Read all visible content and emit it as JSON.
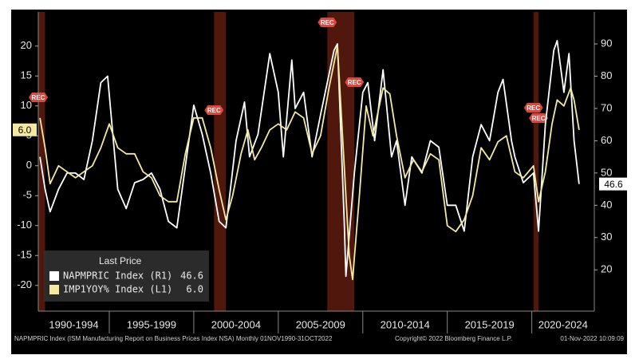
{
  "chart_data": {
    "type": "line",
    "legend_title": "Last Price",
    "recession_label": "REC",
    "footer": [
      "NAPMPRIC Index (ISM Manufacturing Report on Business Prices Index NSA) Monthly 01NOV1990-31OCT2022",
      "Copyright© 2022 Bloomberg Finance L.P.",
      "01-Nov-2022 10:09:09"
    ],
    "xlim": [
      1990.8,
      2023.7
    ],
    "xticks": [
      {
        "value": 1990,
        "label": "1990-1994"
      },
      {
        "value": 1995,
        "label": "1995-1999"
      },
      {
        "value": 2000,
        "label": "2000-2004"
      },
      {
        "value": 2005,
        "label": "2005-2009"
      },
      {
        "value": 2010,
        "label": "2010-2014"
      },
      {
        "value": 2015,
        "label": "2015-2019"
      },
      {
        "value": 2020,
        "label": "2020-2024"
      }
    ],
    "ylim": [
      -24.3,
      25.7
    ],
    "yticks": [
      -20,
      -15,
      -10,
      -5,
      0,
      5,
      10,
      15,
      20
    ],
    "y2lim": [
      7.2,
      99.9
    ],
    "y2ticks": [
      20,
      30,
      40,
      50,
      60,
      70,
      80,
      90
    ],
    "recessions": [
      {
        "start": 1990.6,
        "end": 1991.2
      },
      {
        "start": 2001.2,
        "end": 2001.9
      },
      {
        "start": 2007.9,
        "end": 2009.5
      },
      {
        "start": 2020.1,
        "end": 2020.4
      }
    ],
    "series": [
      {
        "name": "NAPMPRIC Index (R1)",
        "color": "#ffffff",
        "axis": "y2",
        "last_label": "46.6",
        "x": [
          1990.9,
          1991.2,
          1991.5,
          1992,
          1992.5,
          1993,
          1993.5,
          1994,
          1994.5,
          1994.9,
          1995.5,
          1996,
          1996.5,
          1997,
          1997.5,
          1998,
          1998.5,
          1999,
          1999.5,
          2000,
          2000.5,
          2001,
          2001.5,
          2001.9,
          2002.5,
          2003,
          2003.3,
          2003.8,
          2004.5,
          2005,
          2005.3,
          2005.8,
          2006,
          2006.5,
          2007,
          2007.5,
          2008.3,
          2008.5,
          2008.9,
          2009,
          2009.5,
          2010,
          2010.3,
          2010.7,
          2011.2,
          2011.7,
          2012,
          2012.5,
          2012.9,
          2013.5,
          2014,
          2014.5,
          2015,
          2015.5,
          2016,
          2016.5,
          2017,
          2017.5,
          2018,
          2018.3,
          2018.8,
          2019,
          2019.5,
          2020.1,
          2020.4,
          2020.8,
          2021.3,
          2021.5,
          2021.9,
          2022.2,
          2022.5,
          2022.8
        ],
        "values": [
          55,
          45,
          38,
          45,
          50,
          50,
          48,
          60,
          78,
          80,
          45,
          39,
          47,
          48,
          50,
          45,
          35,
          33,
          52,
          71,
          62,
          50,
          35,
          33,
          60,
          72,
          55,
          62,
          87,
          75,
          55,
          85,
          70,
          75,
          55,
          68,
          88,
          90,
          35,
          18,
          50,
          75,
          78,
          60,
          82,
          55,
          60,
          40,
          55,
          50,
          60,
          58,
          40,
          40,
          32,
          55,
          65,
          60,
          75,
          79,
          60,
          55,
          47,
          50,
          32,
          65,
          88,
          91,
          75,
          87,
          60,
          46.6
        ]
      },
      {
        "name": "IMP1YOY% Index (L1)",
        "color": "#f3e9a0",
        "last_label": "6.0",
        "x": [
          1990.9,
          1991.2,
          1991.5,
          1992,
          1992.5,
          1993,
          1993.5,
          1994,
          1994.5,
          1995,
          1995.5,
          1996,
          1996.5,
          1997,
          1997.5,
          1998,
          1998.5,
          1999,
          1999.5,
          2000,
          2000.5,
          2001,
          2001.5,
          2001.9,
          2002.3,
          2002.8,
          2003.2,
          2003.6,
          2004,
          2004.5,
          2005,
          2005.5,
          2006,
          2006.5,
          2007,
          2007.5,
          2008,
          2008.5,
          2008.9,
          2009.2,
          2009.4,
          2009.8,
          2010.2,
          2010.6,
          2011.2,
          2011.6,
          2012,
          2012.5,
          2013,
          2013.5,
          2014,
          2014.5,
          2015,
          2015.5,
          2016,
          2016.5,
          2017,
          2017.5,
          2018,
          2018.5,
          2019,
          2019.5,
          2020.1,
          2020.4,
          2020.8,
          2021.2,
          2021.5,
          2021.9,
          2022.3,
          2022.5,
          2022.8
        ],
        "values": [
          8,
          3,
          -3,
          0,
          -1,
          -2,
          -1,
          0,
          3,
          7,
          3,
          2,
          2,
          -1,
          -2,
          -5,
          -6,
          -6,
          2,
          8,
          8,
          3,
          -4,
          -9,
          -5,
          2,
          6,
          1,
          3,
          6,
          7,
          6,
          9,
          8,
          2,
          5,
          13,
          20,
          0,
          -15,
          -19,
          -5,
          10,
          5,
          13,
          12,
          5,
          -2,
          1,
          -1,
          2,
          1,
          -10,
          -11,
          -9,
          -5,
          3,
          1,
          4,
          5,
          -1,
          -2,
          0,
          -6,
          -1,
          7,
          11,
          10,
          13,
          11,
          6
        ]
      }
    ]
  }
}
